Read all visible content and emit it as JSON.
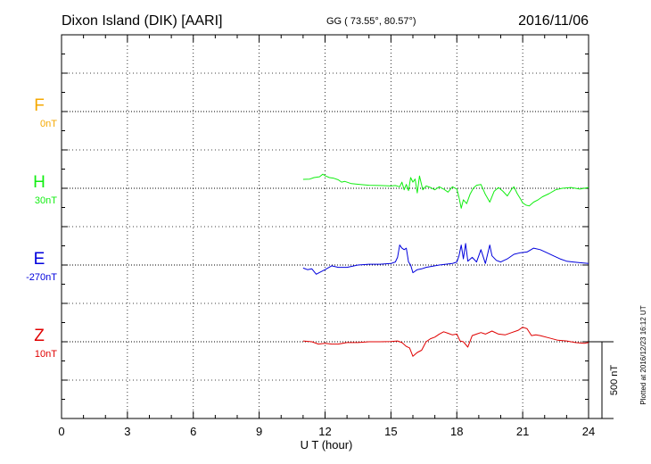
{
  "header": {
    "station": "Dixon Island (DIK)  [AARI]",
    "coords": "GG ( 73.55°,  80.57°)",
    "date": "2016/11/06"
  },
  "side_note": "Plotted at 2016/12/23 16:12 UT",
  "scale_bar": {
    "label": "500 nT",
    "value": 500
  },
  "chart_data": {
    "type": "line",
    "title": "",
    "xlabel": "U T (hour)",
    "xlim": [
      0,
      24
    ],
    "xticks": [
      0,
      3,
      6,
      9,
      12,
      15,
      18,
      21,
      24
    ],
    "grid": true,
    "baseline_spacing_nT": 350,
    "series": [
      {
        "name": "F",
        "offset_label": "0nT",
        "color": "#f5a800",
        "x": [],
        "y": []
      },
      {
        "name": "H",
        "offset_label": "30nT",
        "color": "#11ee11",
        "x": [
          11.0,
          11.3,
          11.5,
          11.75,
          11.9,
          12.0,
          12.2,
          12.4,
          12.6,
          12.75,
          12.9,
          13.2,
          13.6,
          14.0,
          14.5,
          15.0,
          15.2,
          15.4,
          15.5,
          15.6,
          15.7,
          15.8,
          15.9,
          16.0,
          16.1,
          16.2,
          16.3,
          16.45,
          16.6,
          16.8,
          17.0,
          17.2,
          17.4,
          17.6,
          17.8,
          18.0,
          18.1,
          18.2,
          18.3,
          18.45,
          18.6,
          18.75,
          18.9,
          19.1,
          19.3,
          19.5,
          19.7,
          19.9,
          20.1,
          20.3,
          20.5,
          20.6,
          20.75,
          20.9,
          21.0,
          21.15,
          21.3,
          21.5,
          21.7,
          21.9,
          22.2,
          22.5,
          22.8,
          23.2,
          23.6,
          24.0
        ],
        "y": [
          58,
          60,
          70,
          75,
          92,
          82,
          70,
          65,
          55,
          40,
          45,
          30,
          25,
          20,
          18,
          15,
          18,
          10,
          40,
          -10,
          25,
          -15,
          70,
          40,
          60,
          -30,
          80,
          -10,
          15,
          5,
          -10,
          10,
          -5,
          -25,
          10,
          -5,
          -60,
          -130,
          -75,
          -100,
          -40,
          0,
          20,
          25,
          -40,
          -90,
          -20,
          5,
          -20,
          -50,
          -5,
          10,
          -35,
          -70,
          -95,
          -110,
          -115,
          -90,
          -75,
          -55,
          -35,
          -10,
          0,
          5,
          -5,
          5
        ]
      },
      {
        "name": "E",
        "offset_label": "-270nT",
        "color": "#0000dd",
        "x": [
          11.0,
          11.2,
          11.4,
          11.6,
          11.8,
          12.0,
          12.3,
          12.6,
          13.0,
          13.5,
          14.0,
          14.5,
          15.0,
          15.2,
          15.3,
          15.4,
          15.5,
          15.6,
          15.7,
          15.8,
          15.9,
          16.0,
          16.2,
          16.4,
          16.6,
          16.8,
          17.0,
          17.2,
          17.5,
          17.8,
          18.0,
          18.1,
          18.2,
          18.3,
          18.4,
          18.5,
          18.7,
          18.9,
          19.1,
          19.3,
          19.5,
          19.6,
          19.8,
          20.0,
          20.3,
          20.6,
          20.9,
          21.2,
          21.5,
          21.8,
          22.1,
          22.4,
          22.7,
          23.0,
          23.3,
          23.6,
          24.0
        ],
        "y": [
          -20,
          -30,
          -25,
          -60,
          -45,
          -30,
          -5,
          -15,
          -15,
          0,
          5,
          5,
          10,
          20,
          50,
          130,
          110,
          100,
          110,
          20,
          0,
          -50,
          -30,
          -25,
          -15,
          -10,
          -5,
          0,
          5,
          10,
          20,
          60,
          130,
          40,
          140,
          25,
          50,
          20,
          100,
          10,
          130,
          60,
          30,
          20,
          40,
          70,
          80,
          85,
          110,
          100,
          80,
          60,
          40,
          25,
          20,
          15,
          10
        ]
      },
      {
        "name": "Z",
        "offset_label": "10nT",
        "color": "#e00000",
        "x": [
          11.0,
          11.4,
          11.7,
          12.0,
          12.3,
          12.6,
          13.0,
          13.5,
          14.0,
          14.5,
          15.0,
          15.3,
          15.5,
          15.7,
          15.85,
          16.0,
          16.2,
          16.4,
          16.6,
          16.8,
          17.0,
          17.2,
          17.4,
          17.6,
          17.8,
          18.0,
          18.15,
          18.3,
          18.5,
          18.7,
          18.9,
          19.1,
          19.3,
          19.6,
          19.9,
          20.2,
          20.5,
          20.8,
          21.0,
          21.2,
          21.4,
          21.6,
          21.8,
          22.2,
          22.6,
          23.0,
          23.4,
          23.8,
          24.0
        ],
        "y": [
          5,
          0,
          -15,
          -10,
          -15,
          -15,
          -5,
          -5,
          0,
          0,
          2,
          5,
          -5,
          -30,
          -40,
          -95,
          -70,
          -55,
          0,
          20,
          30,
          50,
          65,
          55,
          45,
          50,
          5,
          0,
          -35,
          40,
          50,
          60,
          50,
          70,
          50,
          45,
          60,
          75,
          95,
          85,
          40,
          45,
          40,
          25,
          10,
          5,
          -5,
          -10,
          -5
        ]
      }
    ]
  }
}
